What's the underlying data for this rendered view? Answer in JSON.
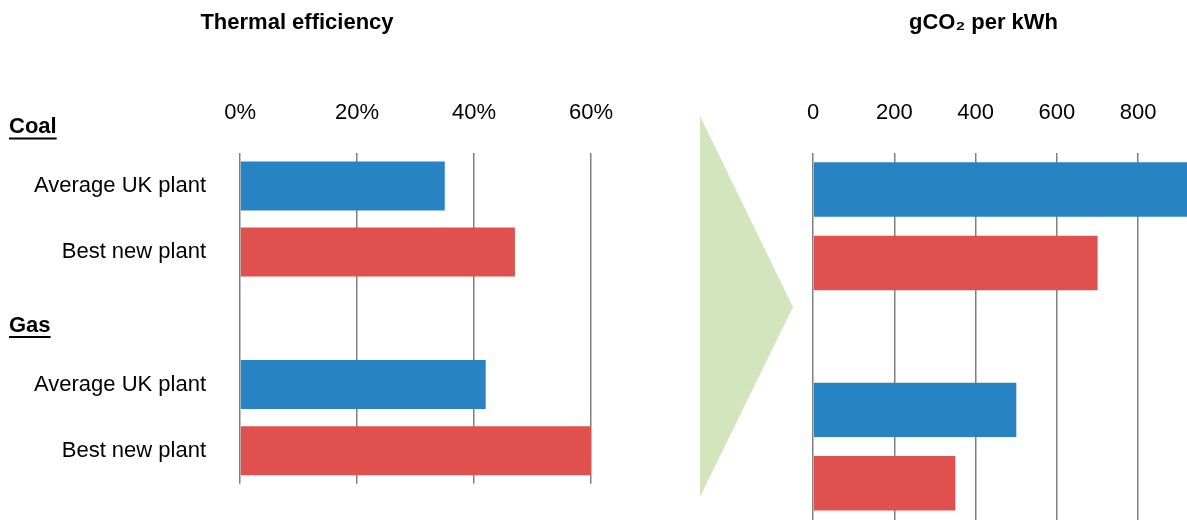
{
  "chart_data": [
    {
      "type": "bar",
      "orientation": "horizontal",
      "title": "Thermal efficiency",
      "categories": [
        "Average UK plant",
        "Best new plant",
        null,
        "Average UK plant",
        "Best new plant"
      ],
      "values": [
        35,
        47,
        null,
        42,
        60
      ],
      "colors": [
        "#2783c1",
        "#df504e",
        "#2783c1",
        "#2783c1",
        "#df504e"
      ],
      "xlim": [
        0,
        60
      ],
      "xticks": [
        {
          "value": 0,
          "label": "0%"
        },
        {
          "value": 20,
          "label": "20%"
        },
        {
          "value": 40,
          "label": "40%"
        },
        {
          "value": 60,
          "label": "60%"
        }
      ],
      "grid": "x",
      "legend": false,
      "annotations": [
        "Coal",
        "Gas"
      ]
    },
    {
      "type": "bar",
      "orientation": "horizontal",
      "title": "gCO₂ per kWh",
      "categories": [
        null,
        null,
        null,
        null,
        null
      ],
      "values": [
        920,
        700,
        null,
        500,
        350
      ],
      "colors": [
        "#2783c1",
        "#df504e",
        "#2783c1",
        "#2783c1",
        "#df504e"
      ],
      "xlim": [
        0,
        920
      ],
      "xticks": [
        0,
        200,
        400,
        600,
        800
      ],
      "grid": "x",
      "legend": false,
      "tick_labels": "x"
    }
  ]
}
